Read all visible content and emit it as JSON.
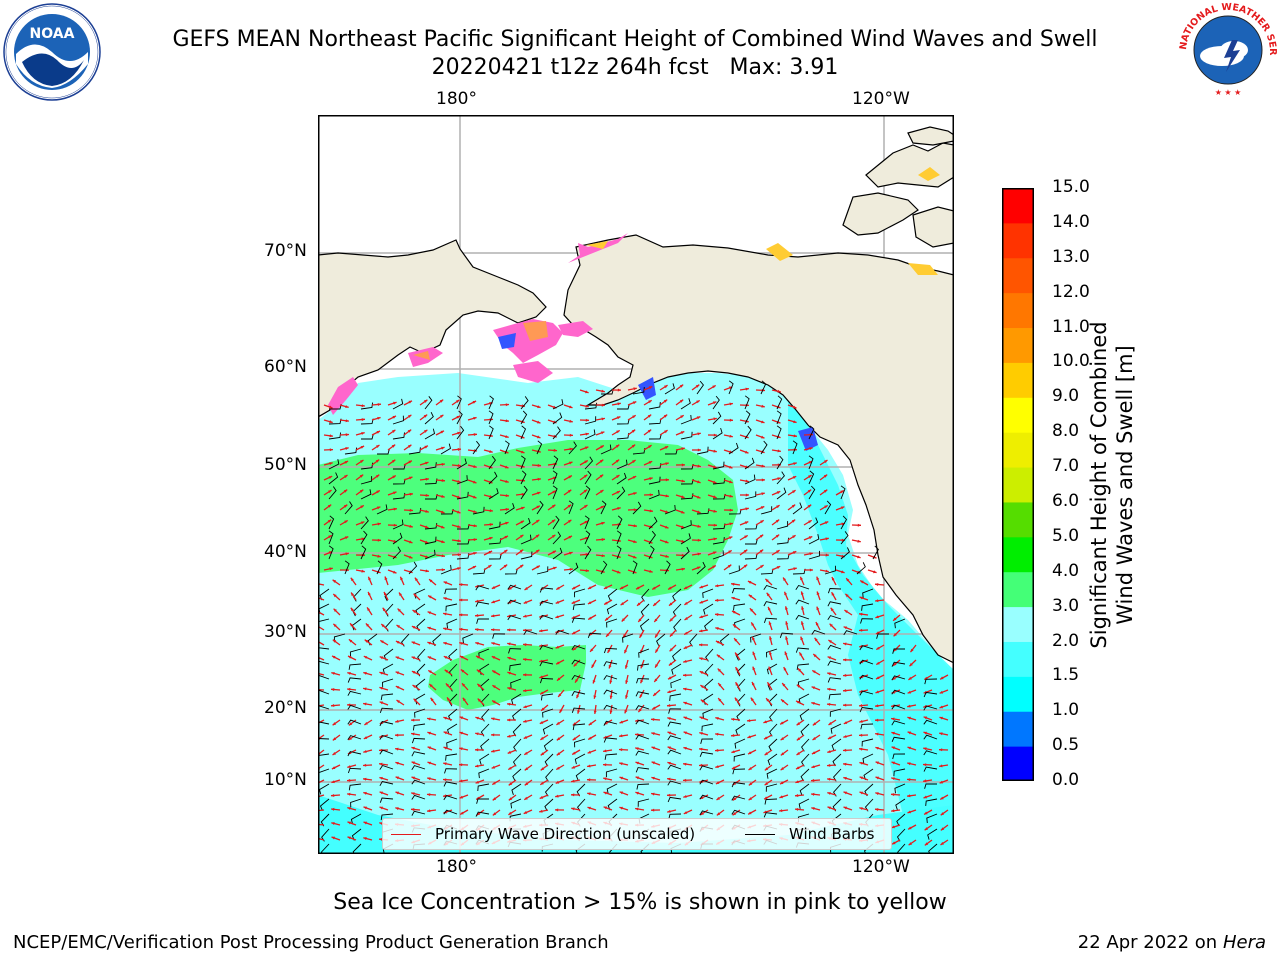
{
  "title_line1": "GEFS MEAN Northeast Pacific Significant Height of Combined Wind Waves and Swell",
  "title_line2": "20220421 t12z 264h fcst   Max: 3.91",
  "logos": {
    "left": {
      "icon": "noaa-logo",
      "text": "NOAA",
      "ring_text": "NATIONAL OCEANIC AND ATMOSPHERIC ADMINISTRATION · U.S. DEPARTMENT OF COMMERCE"
    },
    "right": {
      "icon": "nws-logo",
      "ring_text": "NATIONAL WEATHER SERVICE"
    }
  },
  "map": {
    "lon_labels_top": [
      "180°",
      "120°W"
    ],
    "lon_labels_bottom": [
      "180°",
      "120°W"
    ],
    "lat_labels": [
      "70°N",
      "60°N",
      "50°N",
      "40°N",
      "30°N",
      "20°N",
      "10°N"
    ],
    "land_color": "#efecdc",
    "legend": {
      "wave_label": "Primary Wave Direction (unscaled)",
      "barb_label": "Wind Barbs",
      "wave_color": "#e41a1c",
      "barb_color": "#000000"
    }
  },
  "colorbar": {
    "title_line1": "Significant Height of Combined",
    "title_line2": "Wind Waves and Swell [m]",
    "ticks": [
      "0.0",
      "0.5",
      "1.0",
      "1.5",
      "2.0",
      "3.0",
      "4.0",
      "5.0",
      "6.0",
      "7.0",
      "8.0",
      "9.0",
      "10.0",
      "11.0",
      "12.0",
      "13.0",
      "14.0",
      "15.0"
    ],
    "colors": [
      "#0000ff",
      "#0077ff",
      "#00ffff",
      "#44ffff",
      "#99ffff",
      "#44ff77",
      "#00ee00",
      "#55dd00",
      "#ccee00",
      "#eeee00",
      "#ffff00",
      "#ffcc00",
      "#ff9900",
      "#ff7700",
      "#ff5500",
      "#ff3300",
      "#ff0000"
    ]
  },
  "caption": "Sea Ice Concentration > 15% is shown in pink to yellow",
  "footer_left": "NCEP/EMC/Verification Post Processing Product Generation Branch",
  "footer_right_date": "22 Apr 2022 on ",
  "footer_right_host": "Hera"
}
